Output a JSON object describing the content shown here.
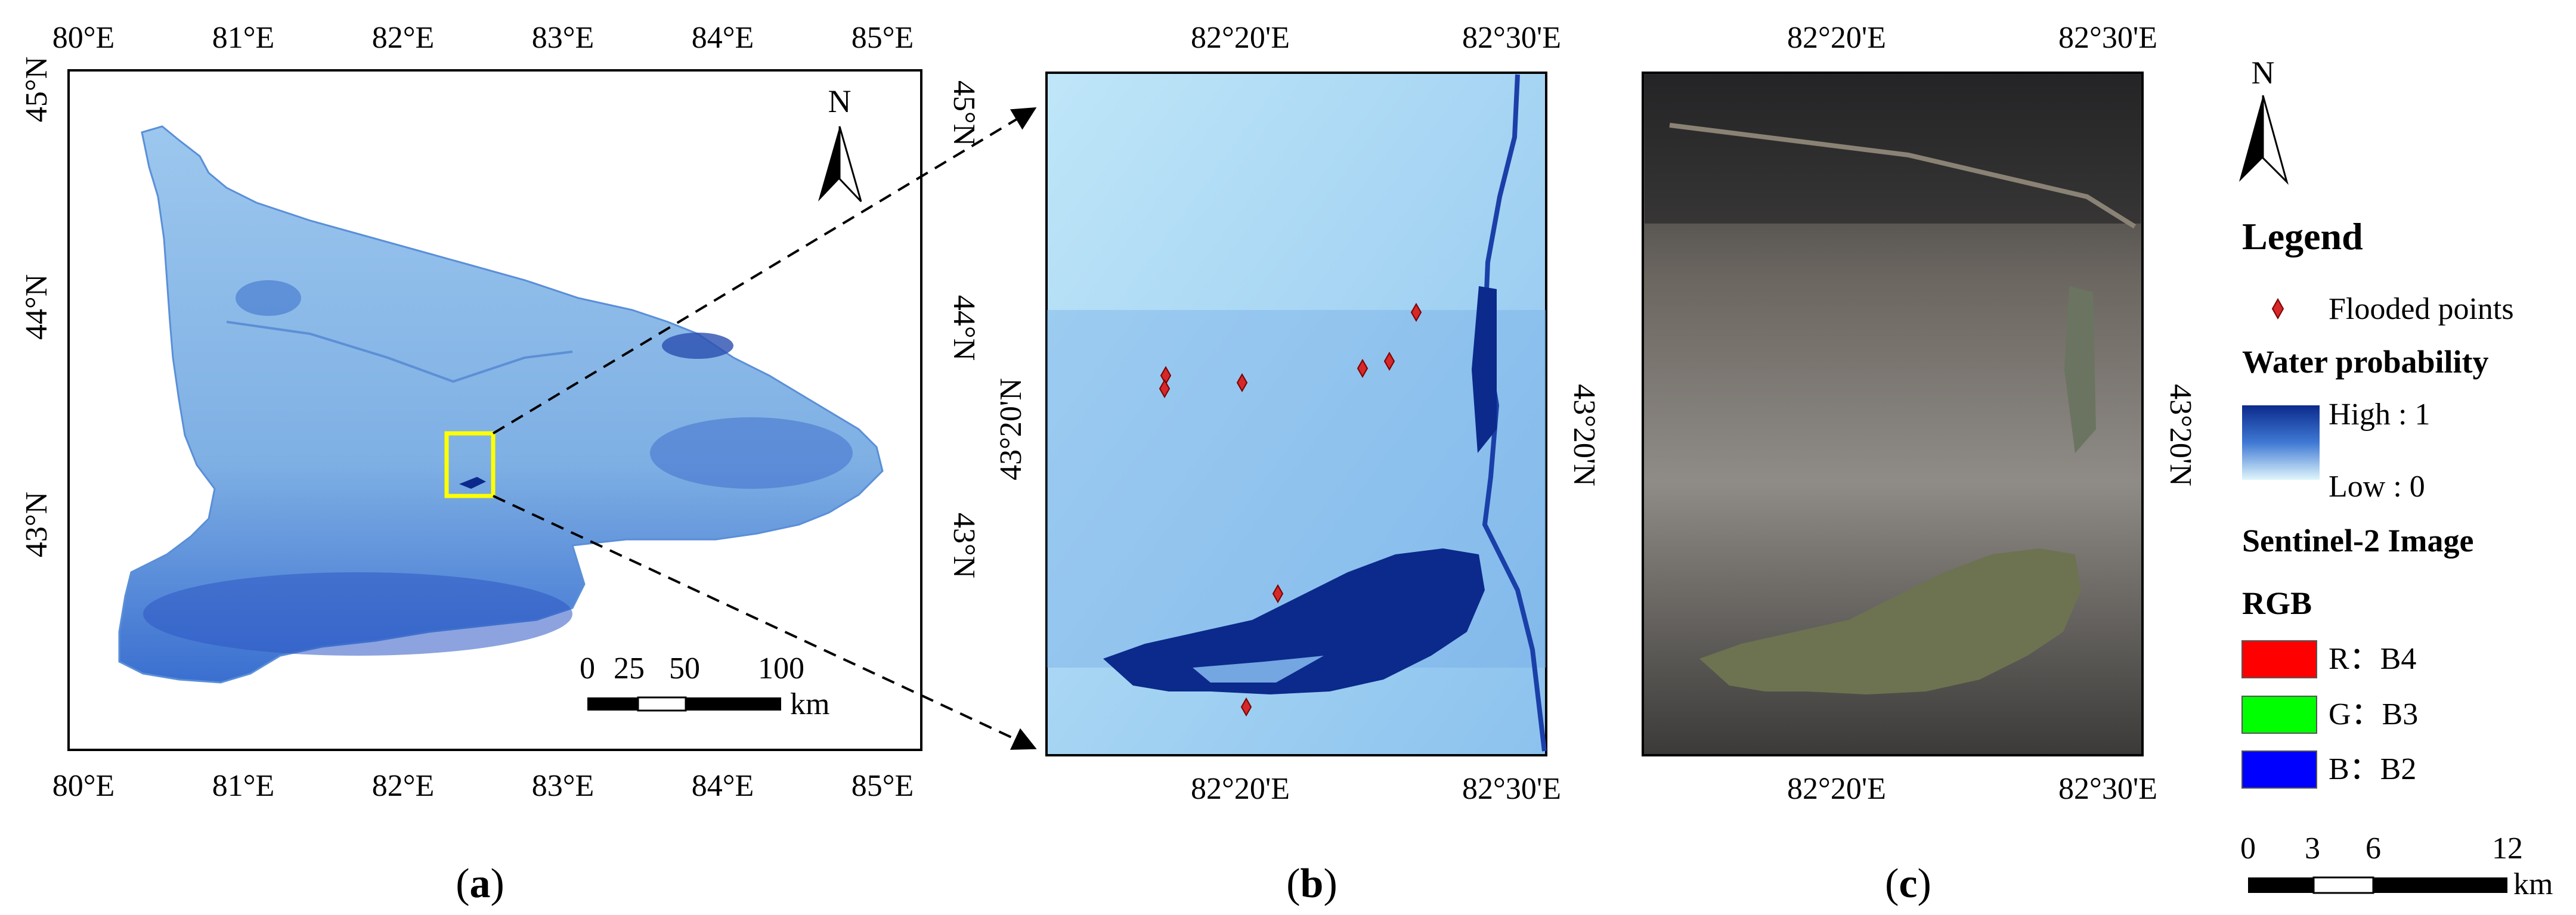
{
  "panel_a": {
    "caption_letter": "a",
    "x_ticks": [
      "80°E",
      "81°E",
      "82°E",
      "83°E",
      "84°E",
      "85°E"
    ],
    "y_ticks": [
      "45°N",
      "44°N",
      "43°N"
    ],
    "north": "N",
    "scale": {
      "labels": [
        "0",
        "25",
        "50",
        "100"
      ],
      "unit": "km"
    }
  },
  "panel_b": {
    "caption_letter": "b",
    "x_ticks": [
      "82°20'E",
      "82°30'E"
    ],
    "y_ticks": [
      "43°20'N"
    ]
  },
  "panel_c": {
    "caption_letter": "c",
    "x_ticks": [
      "82°20'E",
      "82°30'E"
    ],
    "y_ticks": [
      "43°20'N"
    ]
  },
  "legend": {
    "north": "N",
    "title": "Legend",
    "flooded": "Flooded points",
    "water_title": "Water probability",
    "high": "High : 1",
    "low": "Low : 0",
    "sentinel_title": "Sentinel-2 Image",
    "rgb_title": "RGB",
    "bands": [
      {
        "label": "R：B4",
        "color": "#ff0000"
      },
      {
        "label": "G：B3",
        "color": "#00ff00"
      },
      {
        "label": "B：B2",
        "color": "#0000ff"
      }
    ],
    "scale": {
      "labels": [
        "0",
        "3",
        "6",
        "12"
      ],
      "unit": "km"
    }
  },
  "colors": {
    "water_high": "#0b2a8c",
    "water_low": "#d4f1fb",
    "flood_point": "#d62828",
    "highlight_box": "#ffff00"
  }
}
